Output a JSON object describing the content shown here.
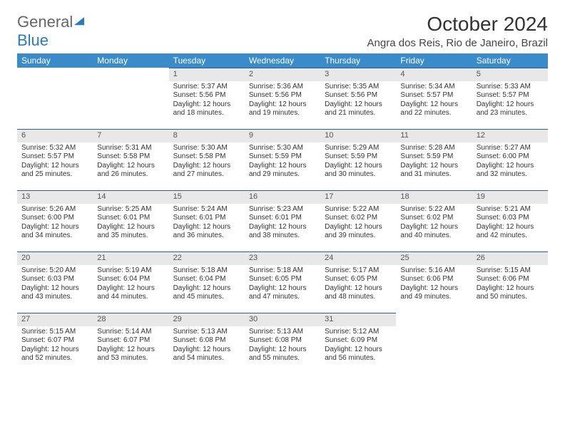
{
  "logo": {
    "part1": "General",
    "part2": "Blue"
  },
  "month": "October 2024",
  "location": "Angra dos Reis, Rio de Janeiro, Brazil",
  "colors": {
    "header_bg": "#3a8bc9",
    "header_fg": "#ffffff",
    "daynum_bg": "#e8e8e8",
    "daynum_border": "#2c5f8d"
  },
  "weekdays": [
    "Sunday",
    "Monday",
    "Tuesday",
    "Wednesday",
    "Thursday",
    "Friday",
    "Saturday"
  ],
  "weeks": [
    [
      null,
      null,
      {
        "n": "1",
        "sr": "Sunrise: 5:37 AM",
        "ss": "Sunset: 5:56 PM",
        "d1": "Daylight: 12 hours",
        "d2": "and 18 minutes."
      },
      {
        "n": "2",
        "sr": "Sunrise: 5:36 AM",
        "ss": "Sunset: 5:56 PM",
        "d1": "Daylight: 12 hours",
        "d2": "and 19 minutes."
      },
      {
        "n": "3",
        "sr": "Sunrise: 5:35 AM",
        "ss": "Sunset: 5:56 PM",
        "d1": "Daylight: 12 hours",
        "d2": "and 21 minutes."
      },
      {
        "n": "4",
        "sr": "Sunrise: 5:34 AM",
        "ss": "Sunset: 5:57 PM",
        "d1": "Daylight: 12 hours",
        "d2": "and 22 minutes."
      },
      {
        "n": "5",
        "sr": "Sunrise: 5:33 AM",
        "ss": "Sunset: 5:57 PM",
        "d1": "Daylight: 12 hours",
        "d2": "and 23 minutes."
      }
    ],
    [
      {
        "n": "6",
        "sr": "Sunrise: 5:32 AM",
        "ss": "Sunset: 5:57 PM",
        "d1": "Daylight: 12 hours",
        "d2": "and 25 minutes."
      },
      {
        "n": "7",
        "sr": "Sunrise: 5:31 AM",
        "ss": "Sunset: 5:58 PM",
        "d1": "Daylight: 12 hours",
        "d2": "and 26 minutes."
      },
      {
        "n": "8",
        "sr": "Sunrise: 5:30 AM",
        "ss": "Sunset: 5:58 PM",
        "d1": "Daylight: 12 hours",
        "d2": "and 27 minutes."
      },
      {
        "n": "9",
        "sr": "Sunrise: 5:30 AM",
        "ss": "Sunset: 5:59 PM",
        "d1": "Daylight: 12 hours",
        "d2": "and 29 minutes."
      },
      {
        "n": "10",
        "sr": "Sunrise: 5:29 AM",
        "ss": "Sunset: 5:59 PM",
        "d1": "Daylight: 12 hours",
        "d2": "and 30 minutes."
      },
      {
        "n": "11",
        "sr": "Sunrise: 5:28 AM",
        "ss": "Sunset: 5:59 PM",
        "d1": "Daylight: 12 hours",
        "d2": "and 31 minutes."
      },
      {
        "n": "12",
        "sr": "Sunrise: 5:27 AM",
        "ss": "Sunset: 6:00 PM",
        "d1": "Daylight: 12 hours",
        "d2": "and 32 minutes."
      }
    ],
    [
      {
        "n": "13",
        "sr": "Sunrise: 5:26 AM",
        "ss": "Sunset: 6:00 PM",
        "d1": "Daylight: 12 hours",
        "d2": "and 34 minutes."
      },
      {
        "n": "14",
        "sr": "Sunrise: 5:25 AM",
        "ss": "Sunset: 6:01 PM",
        "d1": "Daylight: 12 hours",
        "d2": "and 35 minutes."
      },
      {
        "n": "15",
        "sr": "Sunrise: 5:24 AM",
        "ss": "Sunset: 6:01 PM",
        "d1": "Daylight: 12 hours",
        "d2": "and 36 minutes."
      },
      {
        "n": "16",
        "sr": "Sunrise: 5:23 AM",
        "ss": "Sunset: 6:01 PM",
        "d1": "Daylight: 12 hours",
        "d2": "and 38 minutes."
      },
      {
        "n": "17",
        "sr": "Sunrise: 5:22 AM",
        "ss": "Sunset: 6:02 PM",
        "d1": "Daylight: 12 hours",
        "d2": "and 39 minutes."
      },
      {
        "n": "18",
        "sr": "Sunrise: 5:22 AM",
        "ss": "Sunset: 6:02 PM",
        "d1": "Daylight: 12 hours",
        "d2": "and 40 minutes."
      },
      {
        "n": "19",
        "sr": "Sunrise: 5:21 AM",
        "ss": "Sunset: 6:03 PM",
        "d1": "Daylight: 12 hours",
        "d2": "and 42 minutes."
      }
    ],
    [
      {
        "n": "20",
        "sr": "Sunrise: 5:20 AM",
        "ss": "Sunset: 6:03 PM",
        "d1": "Daylight: 12 hours",
        "d2": "and 43 minutes."
      },
      {
        "n": "21",
        "sr": "Sunrise: 5:19 AM",
        "ss": "Sunset: 6:04 PM",
        "d1": "Daylight: 12 hours",
        "d2": "and 44 minutes."
      },
      {
        "n": "22",
        "sr": "Sunrise: 5:18 AM",
        "ss": "Sunset: 6:04 PM",
        "d1": "Daylight: 12 hours",
        "d2": "and 45 minutes."
      },
      {
        "n": "23",
        "sr": "Sunrise: 5:18 AM",
        "ss": "Sunset: 6:05 PM",
        "d1": "Daylight: 12 hours",
        "d2": "and 47 minutes."
      },
      {
        "n": "24",
        "sr": "Sunrise: 5:17 AM",
        "ss": "Sunset: 6:05 PM",
        "d1": "Daylight: 12 hours",
        "d2": "and 48 minutes."
      },
      {
        "n": "25",
        "sr": "Sunrise: 5:16 AM",
        "ss": "Sunset: 6:06 PM",
        "d1": "Daylight: 12 hours",
        "d2": "and 49 minutes."
      },
      {
        "n": "26",
        "sr": "Sunrise: 5:15 AM",
        "ss": "Sunset: 6:06 PM",
        "d1": "Daylight: 12 hours",
        "d2": "and 50 minutes."
      }
    ],
    [
      {
        "n": "27",
        "sr": "Sunrise: 5:15 AM",
        "ss": "Sunset: 6:07 PM",
        "d1": "Daylight: 12 hours",
        "d2": "and 52 minutes."
      },
      {
        "n": "28",
        "sr": "Sunrise: 5:14 AM",
        "ss": "Sunset: 6:07 PM",
        "d1": "Daylight: 12 hours",
        "d2": "and 53 minutes."
      },
      {
        "n": "29",
        "sr": "Sunrise: 5:13 AM",
        "ss": "Sunset: 6:08 PM",
        "d1": "Daylight: 12 hours",
        "d2": "and 54 minutes."
      },
      {
        "n": "30",
        "sr": "Sunrise: 5:13 AM",
        "ss": "Sunset: 6:08 PM",
        "d1": "Daylight: 12 hours",
        "d2": "and 55 minutes."
      },
      {
        "n": "31",
        "sr": "Sunrise: 5:12 AM",
        "ss": "Sunset: 6:09 PM",
        "d1": "Daylight: 12 hours",
        "d2": "and 56 minutes."
      },
      null,
      null
    ]
  ]
}
